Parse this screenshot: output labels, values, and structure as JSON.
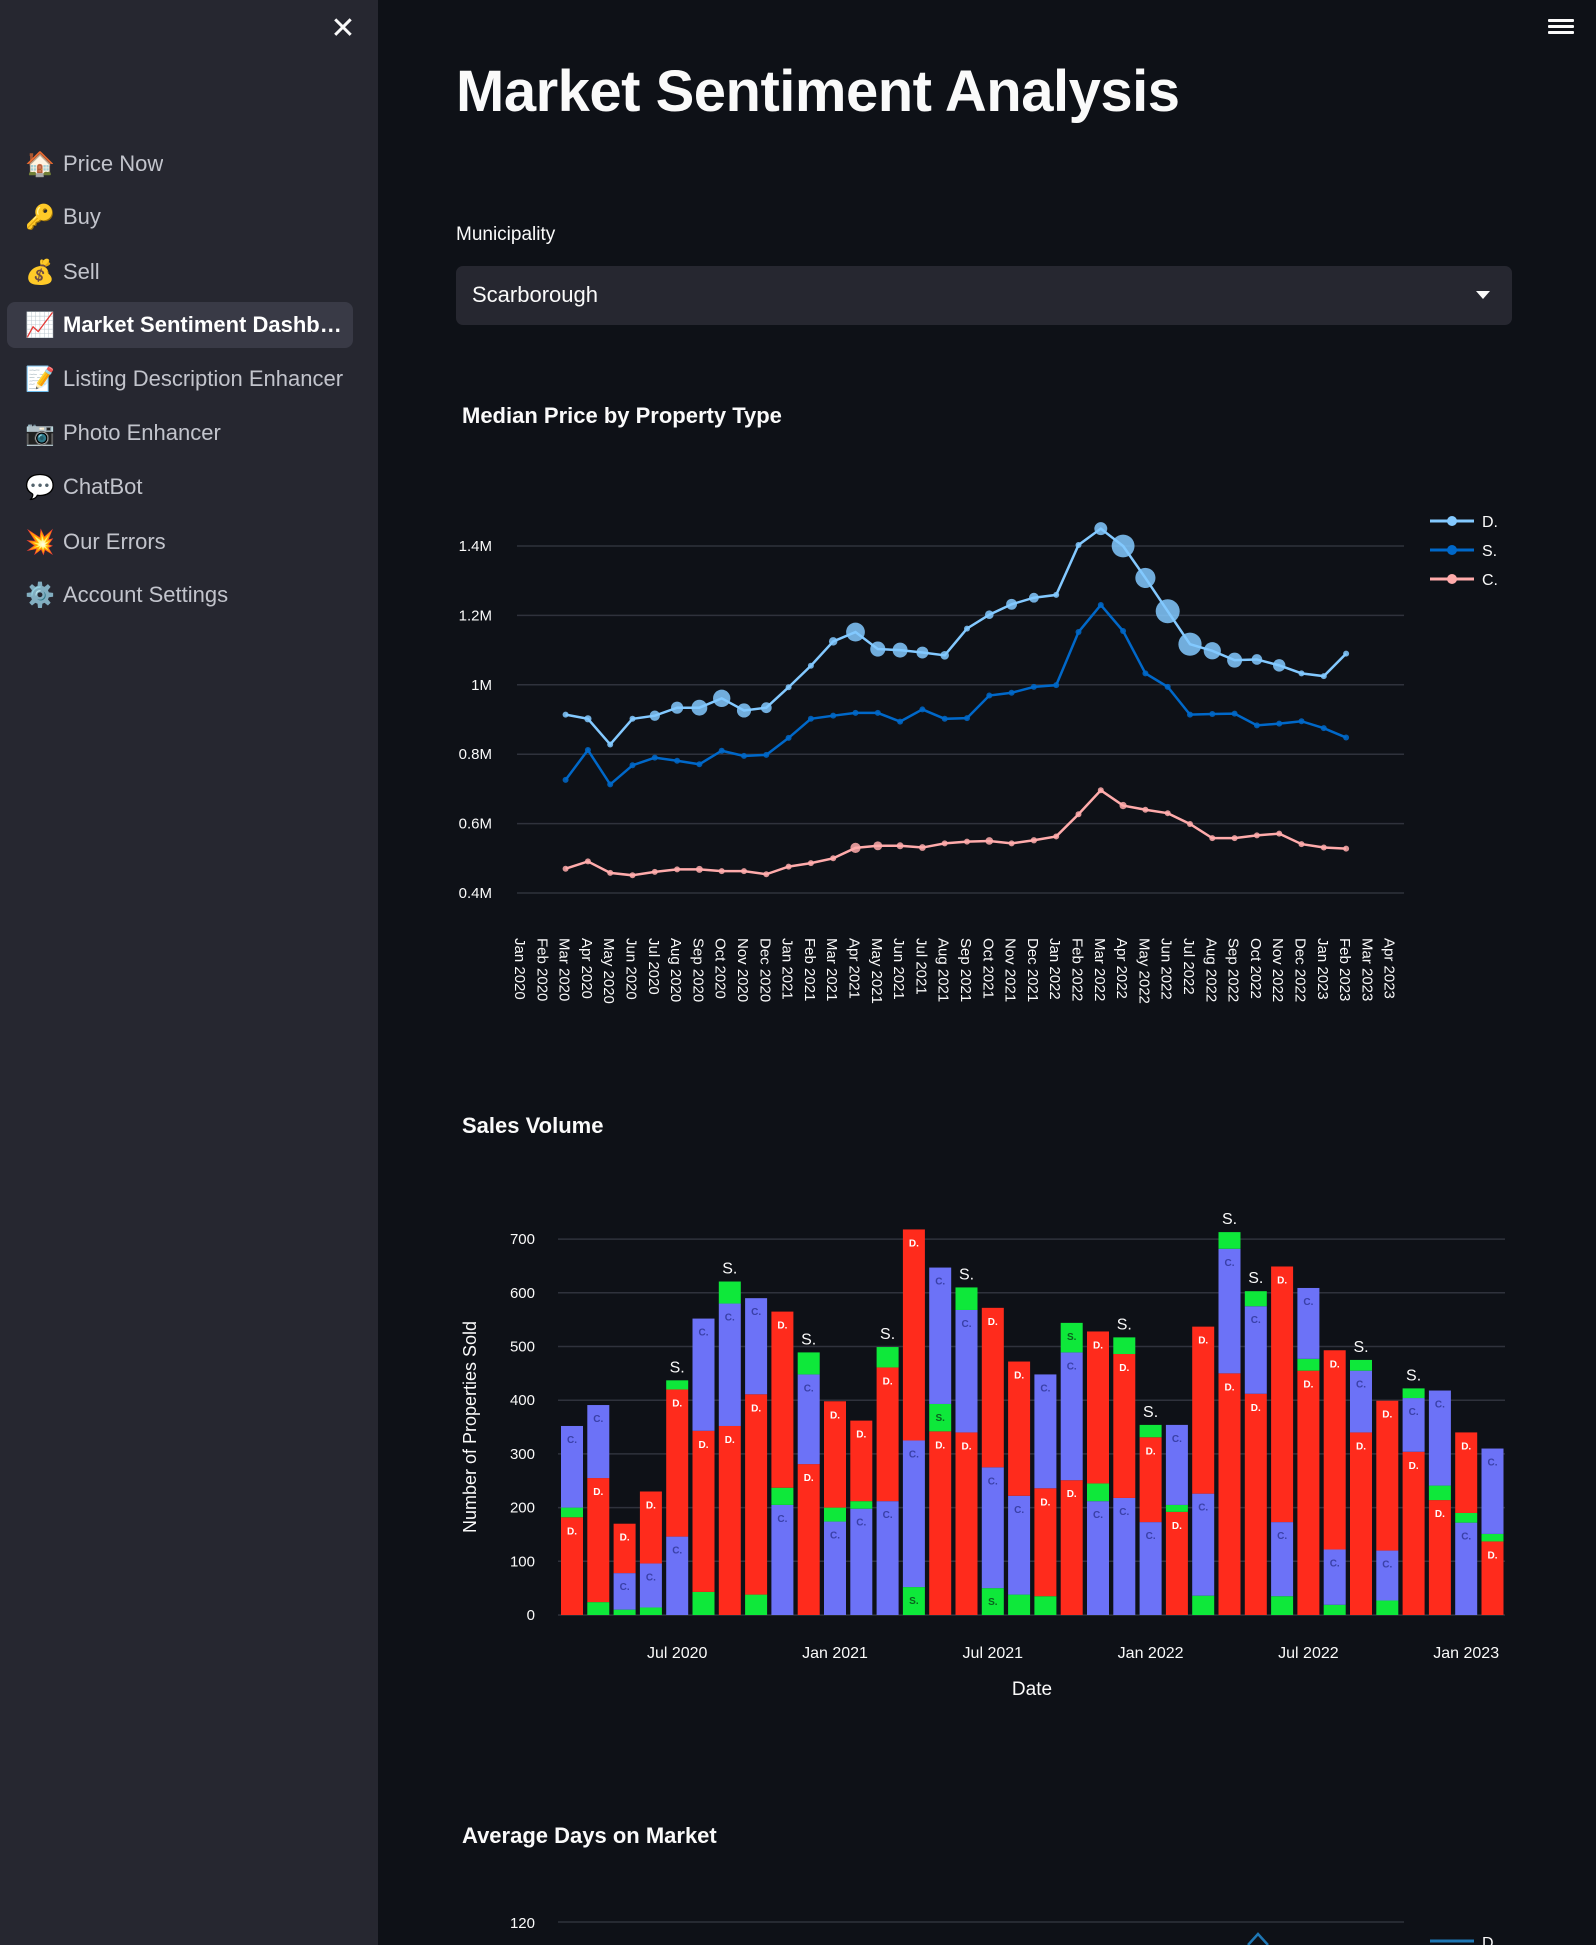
{
  "sidebar": {
    "items": [
      {
        "icon": "🏠",
        "icon_name": "house-icon",
        "label": "Price Now"
      },
      {
        "icon": "🔑",
        "icon_name": "key-icon",
        "label": "Buy"
      },
      {
        "icon": "💰",
        "icon_name": "money-bag-icon",
        "label": "Sell"
      },
      {
        "icon": "📈",
        "icon_name": "chart-increasing-icon",
        "label": "Market Sentiment Dashboard",
        "active": true
      },
      {
        "icon": "📝",
        "icon_name": "memo-icon",
        "label": "Listing Description Enhancer"
      },
      {
        "icon": "📷",
        "icon_name": "camera-icon",
        "label": "Photo Enhancer"
      },
      {
        "icon": "💬",
        "icon_name": "speech-bubble-icon",
        "label": "ChatBot"
      },
      {
        "icon": "💥",
        "icon_name": "collision-icon",
        "label": "Our Errors"
      },
      {
        "icon": "⚙️",
        "icon_name": "gear-icon",
        "label": "Account Settings"
      }
    ],
    "close_icon": "✕"
  },
  "main": {
    "title": "Market Sentiment Analysis",
    "municipality_label": "Municipality",
    "municipality_value": "Scarborough"
  },
  "colors": {
    "D": "#83c9ff",
    "S": "#0068c9",
    "C": "#ffabab",
    "barD": "#ff2b1c",
    "barS": "#0ee83a",
    "barC": "#6c72f7"
  },
  "chart_data": [
    {
      "type": "line",
      "title": "Median Price by Property Type",
      "x_ticks": [
        "Jan 2020",
        "Feb 2020",
        "Mar 2020",
        "Apr 2020",
        "May 2020",
        "Jun 2020",
        "Jul 2020",
        "Aug 2020",
        "Sep 2020",
        "Oct 2020",
        "Nov 2020",
        "Dec 2020",
        "Jan 2021",
        "Feb 2021",
        "Mar 2021",
        "Apr 2021",
        "May 2021",
        "Jun 2021",
        "Jul 2021",
        "Aug 2021",
        "Sep 2021",
        "Oct 2021",
        "Nov 2021",
        "Dec 2021",
        "Jan 2022",
        "Feb 2022",
        "Mar 2022",
        "Apr 2022",
        "May 2022",
        "Jun 2022",
        "Jul 2022",
        "Aug 2022",
        "Sep 2022",
        "Oct 2022",
        "Nov 2022",
        "Dec 2022",
        "Jan 2023",
        "Feb 2023",
        "Mar 2023",
        "Apr 2023"
      ],
      "x_start": "Mar 2020",
      "y_ticks": [
        {
          "v": 1.4,
          "label": "1.4M"
        },
        {
          "v": 1.2,
          "label": "1.2M"
        },
        {
          "v": 1.0,
          "label": "1M"
        },
        {
          "v": 0.8,
          "label": "0.8M"
        },
        {
          "v": 0.6,
          "label": "0.6M"
        },
        {
          "v": 0.4,
          "label": "0.4M"
        }
      ],
      "ylim": [
        0.4,
        1.4
      ],
      "legend": "top-right",
      "series": [
        {
          "name": "D.",
          "key": "D",
          "values": [
            0.914,
            0.902,
            0.828,
            0.902,
            0.911,
            0.934,
            0.934,
            0.961,
            0.926,
            0.934,
            0.993,
            1.055,
            1.125,
            1.152,
            1.103,
            1.1,
            1.093,
            1.085,
            1.162,
            1.202,
            1.232,
            1.251,
            1.259,
            1.403,
            1.45,
            1.4,
            1.308,
            1.212,
            1.117,
            1.098,
            1.071,
            1.073,
            1.056,
            1.033,
            1.025,
            1.09
          ]
        },
        {
          "name": "S.",
          "key": "S",
          "values": [
            0.726,
            0.812,
            0.713,
            0.768,
            0.79,
            0.781,
            0.771,
            0.81,
            0.795,
            0.798,
            0.847,
            0.902,
            0.911,
            0.919,
            0.919,
            0.894,
            0.929,
            0.902,
            0.904,
            0.969,
            0.977,
            0.994,
            0.999,
            1.152,
            1.23,
            1.155,
            1.033,
            0.994,
            0.914,
            0.916,
            0.917,
            0.883,
            0.888,
            0.895,
            0.875,
            0.848
          ]
        },
        {
          "name": "C.",
          "key": "C",
          "values": [
            0.47,
            0.491,
            0.458,
            0.451,
            0.461,
            0.468,
            0.468,
            0.463,
            0.463,
            0.454,
            0.476,
            0.486,
            0.5,
            0.53,
            0.536,
            0.536,
            0.531,
            0.543,
            0.548,
            0.55,
            0.543,
            0.552,
            0.563,
            0.627,
            0.696,
            0.652,
            0.64,
            0.63,
            0.599,
            0.558,
            0.558,
            0.566,
            0.571,
            0.541,
            0.531,
            0.528
          ]
        }
      ]
    },
    {
      "type": "bar",
      "title": "Sales Volume",
      "xlabel": "Date",
      "ylabel": "Number of Properties Sold",
      "ylim": [
        0,
        700
      ],
      "y_ticks": [
        0,
        100,
        200,
        300,
        400,
        500,
        600,
        700
      ],
      "x_ticks": [
        {
          "index": 4,
          "label": "Jul 2020"
        },
        {
          "index": 10,
          "label": "Jan 2021"
        },
        {
          "index": 16,
          "label": "Jul 2021"
        },
        {
          "index": 22,
          "label": "Jan 2022"
        },
        {
          "index": 28,
          "label": "Jul 2022"
        },
        {
          "index": 34,
          "label": "Jan 2023"
        }
      ],
      "segment_labels": {
        "D": "D.",
        "S": "S.",
        "C": "C."
      },
      "stacks": [
        [
          [
            "D",
            182
          ],
          [
            "S",
            18
          ],
          [
            "C",
            152
          ]
        ],
        [
          [
            "S",
            24
          ],
          [
            "D",
            231
          ],
          [
            "C",
            136
          ]
        ],
        [
          [
            "S",
            10
          ],
          [
            "C",
            68
          ],
          [
            "D",
            92
          ]
        ],
        [
          [
            "S",
            14
          ],
          [
            "C",
            82
          ],
          [
            "D",
            134
          ]
        ],
        [
          [
            "C",
            146
          ],
          [
            "D",
            274
          ],
          [
            "S",
            17
          ]
        ],
        [
          [
            "S",
            43
          ],
          [
            "D",
            300
          ],
          [
            "C",
            209
          ]
        ],
        [
          [
            "D",
            352
          ],
          [
            "C",
            228
          ],
          [
            "S",
            41
          ]
        ],
        [
          [
            "S",
            38
          ],
          [
            "D",
            373
          ],
          [
            "C",
            179
          ]
        ],
        [
          [
            "C",
            205
          ],
          [
            "S",
            32
          ],
          [
            "D",
            328
          ]
        ],
        [
          [
            "D",
            281
          ],
          [
            "C",
            167
          ],
          [
            "S",
            41
          ]
        ],
        [
          [
            "C",
            174
          ],
          [
            "S",
            26
          ],
          [
            "D",
            198
          ]
        ],
        [
          [
            "C",
            198
          ],
          [
            "S",
            14
          ],
          [
            "D",
            150
          ]
        ],
        [
          [
            "C",
            212
          ],
          [
            "D",
            249
          ],
          [
            "S",
            38
          ]
        ],
        [
          [
            "S",
            52
          ],
          [
            "C",
            273
          ],
          [
            "D",
            393
          ]
        ],
        [
          [
            "D",
            342
          ],
          [
            "S",
            51
          ],
          [
            "C",
            254
          ]
        ],
        [
          [
            "D",
            340
          ],
          [
            "C",
            228
          ],
          [
            "S",
            42
          ]
        ],
        [
          [
            "S",
            50
          ],
          [
            "C",
            225
          ],
          [
            "D",
            297
          ]
        ],
        [
          [
            "S",
            38
          ],
          [
            "C",
            184
          ],
          [
            "D",
            250
          ]
        ],
        [
          [
            "S",
            35
          ],
          [
            "D",
            201
          ],
          [
            "C",
            212
          ]
        ],
        [
          [
            "D",
            251
          ],
          [
            "C",
            238
          ],
          [
            "S",
            55
          ]
        ],
        [
          [
            "C",
            212
          ],
          [
            "S",
            33
          ],
          [
            "D",
            283
          ]
        ],
        [
          [
            "C",
            218
          ],
          [
            "D",
            268
          ],
          [
            "S",
            31
          ]
        ],
        [
          [
            "C",
            173
          ],
          [
            "D",
            158
          ],
          [
            "S",
            23
          ]
        ],
        [
          [
            "D",
            192
          ],
          [
            "S",
            13
          ],
          [
            "C",
            149
          ]
        ],
        [
          [
            "S",
            36
          ],
          [
            "C",
            190
          ],
          [
            "D",
            311
          ]
        ],
        [
          [
            "D",
            450
          ],
          [
            "C",
            232
          ],
          [
            "S",
            31
          ]
        ],
        [
          [
            "D",
            412
          ],
          [
            "C",
            163
          ],
          [
            "S",
            28
          ]
        ],
        [
          [
            "S",
            35
          ],
          [
            "C",
            138
          ],
          [
            "D",
            476
          ]
        ],
        [
          [
            "D",
            455
          ],
          [
            "S",
            22
          ],
          [
            "C",
            132
          ]
        ],
        [
          [
            "S",
            19
          ],
          [
            "C",
            103
          ],
          [
            "D",
            371
          ]
        ],
        [
          [
            "D",
            340
          ],
          [
            "C",
            115
          ],
          [
            "S",
            20
          ]
        ],
        [
          [
            "S",
            27
          ],
          [
            "C",
            93
          ],
          [
            "D",
            279
          ]
        ],
        [
          [
            "D",
            304
          ],
          [
            "C",
            100
          ],
          [
            "S",
            18
          ]
        ],
        [
          [
            "D",
            214
          ],
          [
            "S",
            27
          ],
          [
            "C",
            177
          ]
        ],
        [
          [
            "C",
            172
          ],
          [
            "S",
            18
          ],
          [
            "D",
            150
          ]
        ],
        [
          [
            "D",
            137
          ],
          [
            "S",
            14
          ],
          [
            "C",
            159
          ]
        ]
      ]
    },
    {
      "type": "line",
      "title": "Average Days on Market",
      "y_ticks": [
        120
      ],
      "legend": [
        "D."
      ]
    }
  ]
}
